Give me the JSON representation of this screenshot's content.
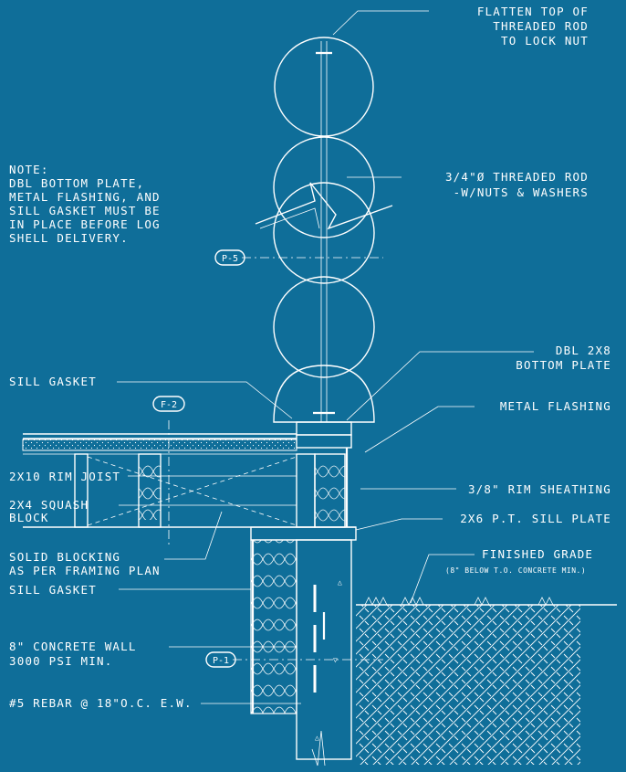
{
  "colors": {
    "background": "#0f6e99",
    "linework": "#ffffff"
  },
  "callouts": {
    "flatten_top": [
      "FLATTEN TOP OF",
      "THREADED ROD",
      "TO LOCK NUT"
    ],
    "note": [
      "NOTE:",
      "DBL BOTTOM PLATE,",
      "METAL FLASHING, AND",
      "SILL GASKET MUST BE",
      "IN PLACE BEFORE LOG",
      "SHELL DELIVERY."
    ],
    "threaded_rod": [
      "3/4\"Ø THREADED ROD",
      "-W/NUTS & WASHERS"
    ],
    "dbl_bottom_plate": [
      "DBL 2X8",
      "BOTTOM PLATE"
    ],
    "sill_gasket_top": "SILL GASKET",
    "metal_flashing": "METAL FLASHING",
    "rim_joist": "2X10 RIM JOIST",
    "squash_block": [
      "2X4 SQUASH",
      "BLOCK"
    ],
    "rim_sheathing": "3/8\" RIM SHEATHING",
    "sill_plate": "2X6 P.T. SILL PLATE",
    "solid_blocking": [
      "SOLID BLOCKING",
      "AS PER FRAMING PLAN"
    ],
    "finished_grade": "FINISHED GRADE",
    "finished_grade_note": "(8\" BELOW T.O. CONCRETE MIN.)",
    "sill_gasket_bottom": "SILL GASKET",
    "concrete_wall": [
      "8\" CONCRETE WALL",
      "3000 PSI MIN."
    ],
    "rebar": "#5 REBAR @ 18\"O.C. E.W."
  },
  "tags": {
    "p5": "P-5",
    "f2": "F-2",
    "p1": "P-1"
  }
}
